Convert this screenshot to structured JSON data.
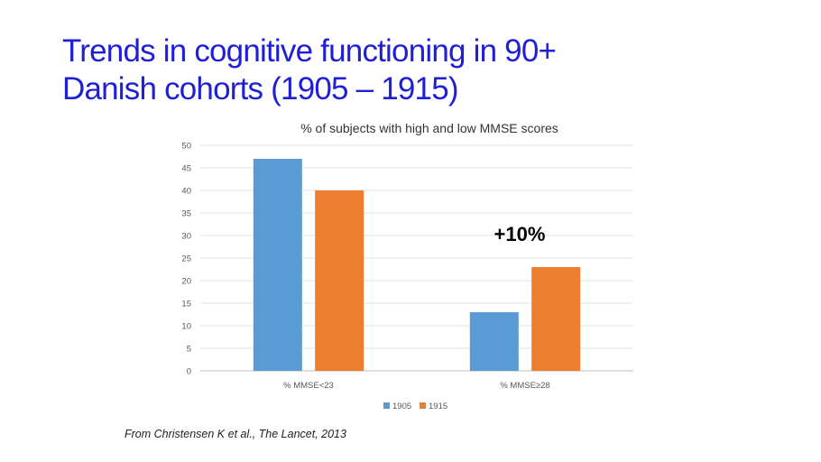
{
  "slide": {
    "title_line1": "Trends in cognitive functioning in 90+",
    "title_line2": "Danish cohorts (1905 – 1915)",
    "citation": "From Christensen K et al., The Lancet, 2013",
    "title_color": "#1f1fd6"
  },
  "chart_data": {
    "type": "bar",
    "title": "% of subjects with high and low MMSE scores",
    "categories": [
      "% MMSE<23",
      "% MMSE≥28"
    ],
    "series": [
      {
        "name": "1905",
        "color": "#5b9bd5",
        "values": [
          47,
          13
        ]
      },
      {
        "name": "1915",
        "color": "#ed7d31",
        "values": [
          40,
          23
        ]
      }
    ],
    "ylim": [
      0,
      50
    ],
    "yticks": [
      0,
      5,
      10,
      15,
      20,
      25,
      30,
      35,
      40,
      45,
      50
    ],
    "grid": true,
    "legend": "bottom",
    "annotation": "+10%"
  }
}
